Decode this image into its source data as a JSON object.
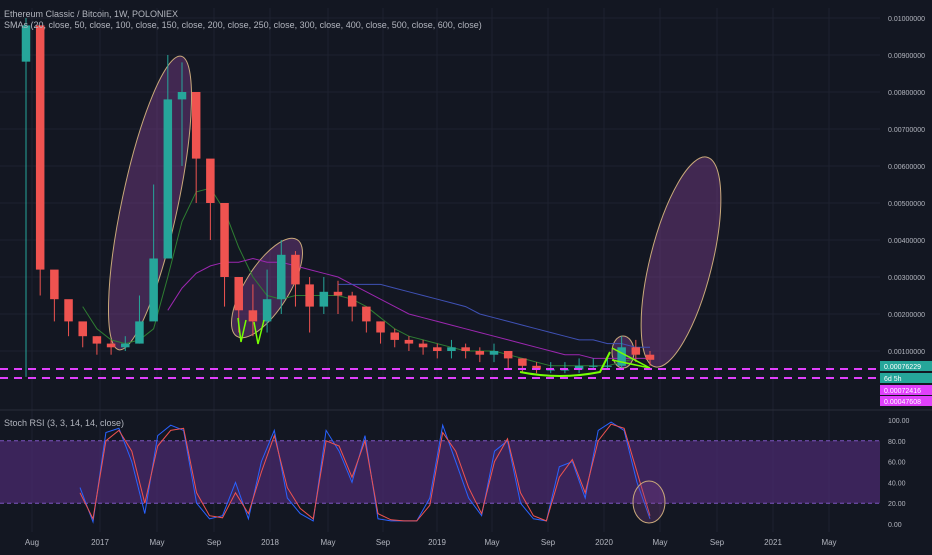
{
  "main_title": "Ethereum Classic / Bitcoin, 1W, POLONIEX",
  "sma_legend": "SMAs (20, close, 50, close, 100, close, 150, close, 200, close, 250, close, 300, close, 400, close, 500, close, 600, close)",
  "rsi_title": "Stoch RSI (3, 3, 14, 14, close)",
  "colors": {
    "background": "#131722",
    "grid": "#1e2230",
    "up": "#26a69a",
    "down": "#ef5350",
    "sma_green": "#2e7d32",
    "sma_purple": "#9c27b0",
    "sma_blue": "#3f51b5",
    "ellipse_fill": "#7b3f8c",
    "rsi_band": "#4a2a6e",
    "rsi_k": "#2962ff",
    "rsi_d": "#ef5350",
    "dash_magenta": "#e040fb",
    "neon_green": "#76ff03"
  },
  "price_axis": {
    "ticks": [
      "0.01000000",
      "0.00900000",
      "0.00800000",
      "0.00700000",
      "0.00600000",
      "0.00500000",
      "0.00400000",
      "0.00300000",
      "0.00200000",
      "0.00100000"
    ],
    "labels": [
      {
        "text": "0.00076229",
        "bg": "#26a69a"
      },
      {
        "text": "6d 5h",
        "bg": "#26a69a"
      },
      {
        "text": "0.00072416",
        "bg": "#e040fb"
      },
      {
        "text": "0.00047608",
        "bg": "#e040fb"
      }
    ]
  },
  "rsi_axis": {
    "ticks": [
      "100.00",
      "80.00",
      "60.00",
      "40.00",
      "20.00",
      "0.00"
    ]
  },
  "time_axis": {
    "ticks": [
      "Aug",
      "2017",
      "May",
      "Sep",
      "2018",
      "May",
      "Sep",
      "2019",
      "May",
      "Sep",
      "2020",
      "May",
      "Sep",
      "2021",
      "May"
    ]
  },
  "chart_data": [
    {
      "type": "candlestick",
      "title": "Ethereum Classic / Bitcoin, 1W, POLONIEX",
      "ylim": [
        0,
        0.0105
      ],
      "x": [
        "2016-07",
        "2016-08",
        "2016-09",
        "2016-10",
        "2016-11",
        "2016-12",
        "2017-01",
        "2017-02",
        "2017-03",
        "2017-04",
        "2017-05",
        "2017-06",
        "2017-07",
        "2017-08",
        "2017-09",
        "2017-10",
        "2017-11",
        "2017-12",
        "2018-01",
        "2018-02",
        "2018-03",
        "2018-04",
        "2018-05",
        "2018-06",
        "2018-07",
        "2018-08",
        "2018-09",
        "2018-10",
        "2018-11",
        "2018-12",
        "2019-01",
        "2019-02",
        "2019-03",
        "2019-04",
        "2019-05",
        "2019-06",
        "2019-07",
        "2019-08",
        "2019-09",
        "2019-10",
        "2019-11",
        "2019-12",
        "2020-01",
        "2020-02",
        "2020-03"
      ],
      "close": [
        0.0098,
        0.0032,
        0.0024,
        0.0018,
        0.0014,
        0.0012,
        0.0011,
        0.0012,
        0.0018,
        0.0035,
        0.0078,
        0.008,
        0.0062,
        0.005,
        0.003,
        0.0021,
        0.0018,
        0.0024,
        0.0036,
        0.0028,
        0.0022,
        0.0026,
        0.0025,
        0.0022,
        0.0018,
        0.0015,
        0.0013,
        0.0012,
        0.0011,
        0.001,
        0.0011,
        0.001,
        0.0009,
        0.001,
        0.0008,
        0.0006,
        0.0005,
        0.0005,
        0.0005,
        0.0006,
        0.0006,
        0.0006,
        0.0011,
        0.0009,
        0.00076229
      ],
      "high": [
        0.01,
        0.0038,
        0.0028,
        0.0021,
        0.0016,
        0.0014,
        0.0013,
        0.0014,
        0.0025,
        0.0055,
        0.009,
        0.0088,
        0.0075,
        0.0058,
        0.0045,
        0.003,
        0.0028,
        0.0032,
        0.004,
        0.0037,
        0.003,
        0.003,
        0.0029,
        0.0026,
        0.0022,
        0.0018,
        0.0016,
        0.0014,
        0.0013,
        0.0012,
        0.0013,
        0.0012,
        0.0011,
        0.0012,
        0.001,
        0.0008,
        0.0007,
        0.0007,
        0.0007,
        0.0008,
        0.0008,
        0.0008,
        0.0014,
        0.0013,
        0.001
      ],
      "low": [
        0.0003,
        0.0025,
        0.0018,
        0.0014,
        0.0011,
        0.0009,
        0.0009,
        0.001,
        0.0012,
        0.002,
        0.0045,
        0.006,
        0.005,
        0.004,
        0.0022,
        0.0015,
        0.0014,
        0.0015,
        0.002,
        0.0022,
        0.0015,
        0.002,
        0.002,
        0.0018,
        0.0015,
        0.0012,
        0.0011,
        0.001,
        0.0009,
        0.0008,
        0.0008,
        0.0008,
        0.0007,
        0.0007,
        0.0005,
        0.0004,
        0.0004,
        0.0004,
        0.0004,
        0.0004,
        0.0005,
        0.0005,
        0.0005,
        0.0007,
        0.0006
      ],
      "sma_lines": [
        {
          "color": "sma_green",
          "values": [
            null,
            null,
            null,
            null,
            0.0022,
            0.0016,
            0.0013,
            0.0012,
            0.0013,
            0.0016,
            0.003,
            0.0045,
            0.0053,
            0.0054,
            0.0048,
            0.0038,
            0.003,
            0.0025,
            0.0024,
            0.0025,
            0.0025,
            0.0025,
            0.0025,
            0.0024,
            0.0022,
            0.0019,
            0.0016,
            0.0014,
            0.0013,
            0.0012,
            0.0011,
            0.001,
            0.001,
            0.001,
            0.0009,
            0.0008,
            0.0007,
            0.0006,
            0.0006,
            0.0006,
            0.0006,
            0.0006,
            0.0007,
            0.0008,
            0.0008
          ]
        },
        {
          "color": "sma_purple",
          "values": [
            null,
            null,
            null,
            null,
            null,
            null,
            null,
            null,
            null,
            null,
            0.0021,
            0.0027,
            0.0031,
            0.0033,
            0.0034,
            0.0034,
            0.0035,
            0.0034,
            0.0034,
            0.0033,
            0.0032,
            0.0031,
            0.003,
            0.0028,
            0.0026,
            0.0024,
            0.0022,
            0.002,
            0.0019,
            0.0018,
            0.0017,
            0.0016,
            0.0015,
            0.0014,
            0.0013,
            0.0012,
            0.0011,
            0.001,
            0.0009,
            0.0009,
            0.0008,
            0.0008,
            0.0008,
            0.0008,
            0.0008
          ]
        },
        {
          "color": "sma_blue",
          "values": [
            null,
            null,
            null,
            null,
            null,
            null,
            null,
            null,
            null,
            null,
            null,
            null,
            null,
            null,
            null,
            null,
            null,
            null,
            null,
            null,
            null,
            null,
            0.0028,
            0.0028,
            0.0028,
            0.0028,
            0.0027,
            0.0026,
            0.0025,
            0.0024,
            0.0023,
            0.0022,
            0.002,
            0.0019,
            0.0018,
            0.0017,
            0.0016,
            0.0015,
            0.0014,
            0.0013,
            0.0013,
            0.0012,
            0.0012,
            0.0011,
            0.0011
          ]
        }
      ]
    },
    {
      "type": "line",
      "title": "Stoch RSI (3, 3, 14, 14, close)",
      "ylim": [
        0,
        100
      ],
      "series": [
        {
          "color": "rsi_k",
          "values": [
            35,
            2,
            88,
            92,
            60,
            10,
            85,
            95,
            90,
            20,
            5,
            8,
            40,
            5,
            60,
            90,
            25,
            10,
            3,
            90,
            70,
            40,
            85,
            5,
            3,
            3,
            3,
            25,
            95,
            60,
            25,
            8,
            70,
            80,
            20,
            5,
            3,
            55,
            60,
            25,
            90,
            98,
            90,
            40,
            5
          ]
        },
        {
          "color": "rsi_d",
          "values": [
            30,
            5,
            80,
            90,
            70,
            20,
            75,
            90,
            92,
            30,
            8,
            6,
            30,
            10,
            50,
            85,
            35,
            15,
            5,
            80,
            75,
            45,
            80,
            10,
            4,
            3,
            3,
            18,
            88,
            70,
            35,
            10,
            60,
            82,
            30,
            8,
            3,
            45,
            62,
            30,
            80,
            96,
            92,
            50,
            8
          ]
        }
      ],
      "bands": [
        20,
        80
      ]
    }
  ]
}
